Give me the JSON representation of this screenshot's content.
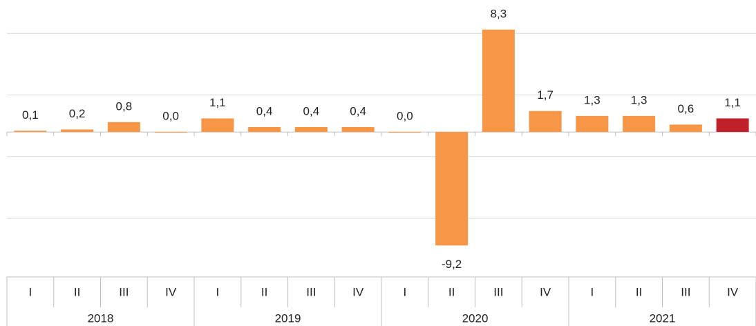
{
  "chart_data": {
    "type": "bar",
    "categories": [
      "I",
      "II",
      "III",
      "IV",
      "I",
      "II",
      "III",
      "IV",
      "I",
      "II",
      "III",
      "IV",
      "I",
      "II",
      "III",
      "IV"
    ],
    "years": [
      "2018",
      "2019",
      "2020",
      "2021"
    ],
    "values": [
      0.1,
      0.2,
      0.8,
      0.0,
      1.1,
      0.4,
      0.4,
      0.4,
      0.0,
      -9.2,
      8.3,
      1.7,
      1.3,
      1.3,
      0.6,
      1.1
    ],
    "value_labels": [
      "0,1",
      "0,2",
      "0,8",
      "0,0",
      "1,1",
      "0,4",
      "0,4",
      "0,4",
      "0,0",
      "-9,2",
      "8,3",
      "1,7",
      "1,3",
      "1,3",
      "0,6",
      "1,1"
    ],
    "colors": [
      "#f79646",
      "#f79646",
      "#f79646",
      "#f79646",
      "#f79646",
      "#f79646",
      "#f79646",
      "#f79646",
      "#f79646",
      "#f79646",
      "#f79646",
      "#f79646",
      "#f79646",
      "#f79646",
      "#f79646",
      "#c0202a"
    ],
    "ylim": [
      -11.7,
      10.7
    ],
    "yticks": [
      -7,
      -2,
      3,
      8
    ],
    "grid": true
  }
}
